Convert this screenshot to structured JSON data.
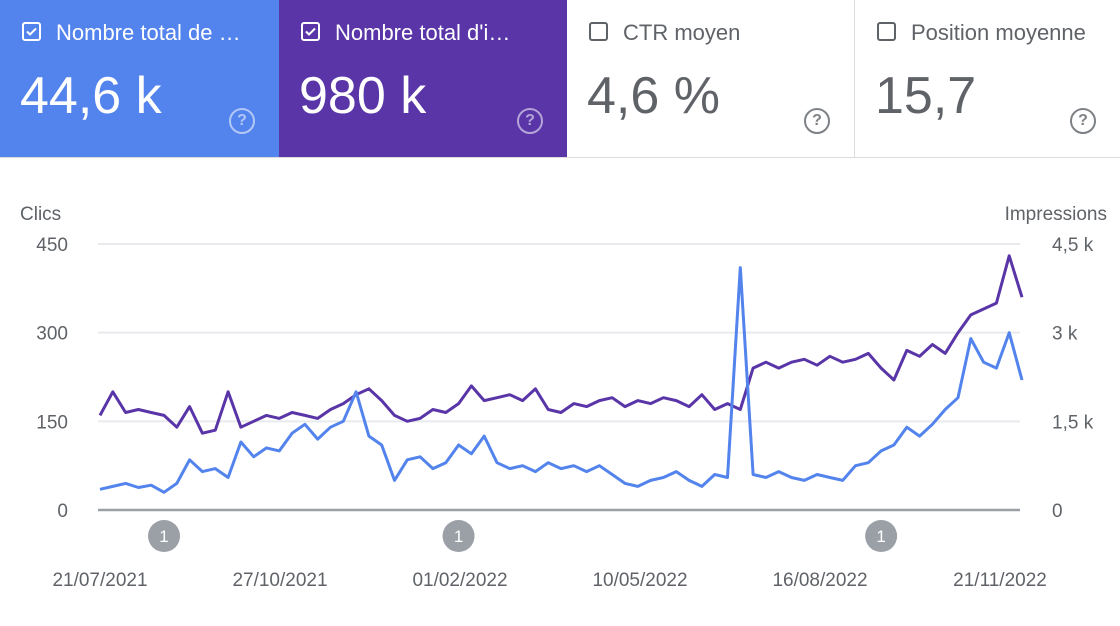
{
  "metrics": [
    {
      "label": "Nombre total de …",
      "value": "44,6 k",
      "checked": true,
      "color": "#5383ec"
    },
    {
      "label": "Nombre total d'i…",
      "value": "980 k",
      "checked": true,
      "color": "#5935a8"
    },
    {
      "label": "CTR moyen",
      "value": "4,6 %",
      "checked": false
    },
    {
      "label": "Position moyenne",
      "value": "15,7",
      "checked": false
    }
  ],
  "help_glyph": "?",
  "chart_data": {
    "type": "line",
    "left_axis": {
      "label": "Clics",
      "ticks": [
        "0",
        "150",
        "300",
        "450"
      ],
      "range": [
        0,
        450
      ]
    },
    "right_axis": {
      "label": "Impressions",
      "ticks": [
        "0",
        "1,5 k",
        "3 k",
        "4,5 k"
      ],
      "range": [
        0,
        4500
      ]
    },
    "x_ticks": [
      "21/07/2021",
      "27/10/2021",
      "01/02/2022",
      "10/05/2022",
      "16/08/2022",
      "21/11/2022"
    ],
    "x_note": "weekly samples from 21/07/2021",
    "annotations": [
      {
        "week": 5,
        "label": "1"
      },
      {
        "week": 28,
        "label": "1"
      },
      {
        "week": 61,
        "label": "1"
      }
    ],
    "grid": true,
    "series": [
      {
        "name": "Clics",
        "axis": "left",
        "color": "#5383ec",
        "values": [
          35,
          40,
          45,
          38,
          42,
          30,
          45,
          85,
          65,
          70,
          55,
          115,
          90,
          105,
          100,
          130,
          145,
          120,
          140,
          150,
          200,
          125,
          110,
          50,
          85,
          90,
          70,
          80,
          110,
          95,
          125,
          80,
          70,
          75,
          65,
          80,
          70,
          75,
          65,
          75,
          60,
          45,
          40,
          50,
          55,
          65,
          50,
          40,
          60,
          55,
          410,
          60,
          55,
          65,
          55,
          50,
          60,
          55,
          50,
          75,
          80,
          100,
          110,
          140,
          125,
          145,
          170,
          190,
          290,
          250,
          240,
          300,
          220
        ]
      },
      {
        "name": "Impressions",
        "axis": "right",
        "color": "#5935a8",
        "values": [
          1600,
          2000,
          1650,
          1700,
          1650,
          1600,
          1400,
          1750,
          1300,
          1350,
          2000,
          1400,
          1500,
          1600,
          1550,
          1650,
          1600,
          1550,
          1700,
          1800,
          1950,
          2050,
          1850,
          1600,
          1500,
          1550,
          1700,
          1650,
          1800,
          2100,
          1850,
          1900,
          1950,
          1850,
          2050,
          1700,
          1650,
          1800,
          1750,
          1850,
          1900,
          1750,
          1850,
          1800,
          1900,
          1850,
          1750,
          1950,
          1700,
          1800,
          1700,
          2400,
          2500,
          2400,
          2500,
          2550,
          2450,
          2600,
          2500,
          2550,
          2650,
          2400,
          2200,
          2700,
          2600,
          2800,
          2650,
          3000,
          3300,
          3400,
          3500,
          4300,
          3600
        ]
      }
    ]
  }
}
